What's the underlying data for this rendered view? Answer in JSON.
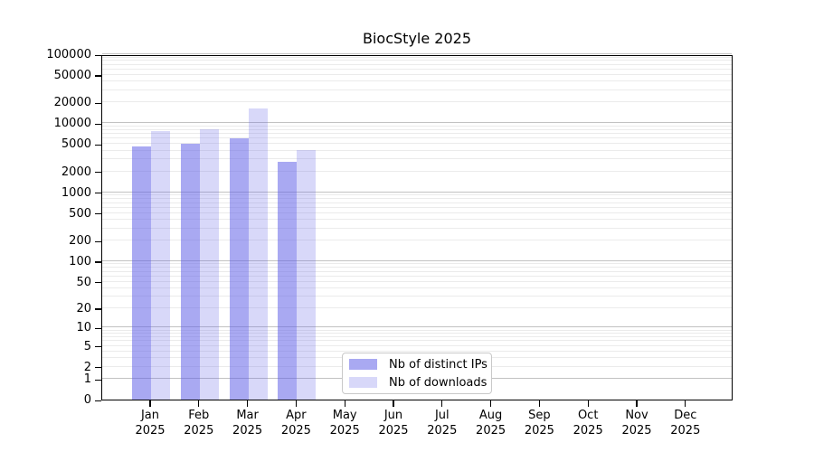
{
  "colors": {
    "bar_distinct_ips": "rgba(99,99,231,0.55)",
    "bar_downloads": "rgba(99,99,231,0.25)",
    "grid_major": "#c2c2c2",
    "grid_minor": "#ebebeb",
    "axis": "#000000",
    "background": "#ffffff"
  },
  "chart_data": {
    "type": "bar",
    "title": "BiocStyle 2025",
    "categories": [
      "Jan 2025",
      "Feb 2025",
      "Mar 2025",
      "Apr 2025",
      "May 2025",
      "Jun 2025",
      "Jul 2025",
      "Aug 2025",
      "Sep 2025",
      "Oct 2025",
      "Nov 2025",
      "Dec 2025"
    ],
    "series": [
      {
        "name": "Nb of distinct IPs",
        "values": [
          4600,
          5100,
          6000,
          2800,
          null,
          null,
          null,
          null,
          null,
          null,
          null,
          null
        ]
      },
      {
        "name": "Nb of downloads",
        "values": [
          7700,
          8200,
          16300,
          4100,
          null,
          null,
          null,
          null,
          null,
          null,
          null,
          null
        ]
      }
    ],
    "yscale": "log1p",
    "ylim": [
      0,
      100000
    ],
    "yticks": [
      0,
      1,
      2,
      5,
      10,
      20,
      50,
      100,
      200,
      500,
      1000,
      2000,
      5000,
      10000,
      20000,
      50000,
      100000
    ],
    "ytick_labels": [
      "0",
      "1",
      "2",
      "5",
      "10",
      "20",
      "50",
      "100",
      "200",
      "500",
      "1000",
      "2000",
      "5000",
      "10000",
      "20000",
      "50000",
      "100000"
    ],
    "grid": "horizontal major+minor (log decades)",
    "legend_position": "lower center",
    "xlabel": "",
    "ylabel": ""
  }
}
